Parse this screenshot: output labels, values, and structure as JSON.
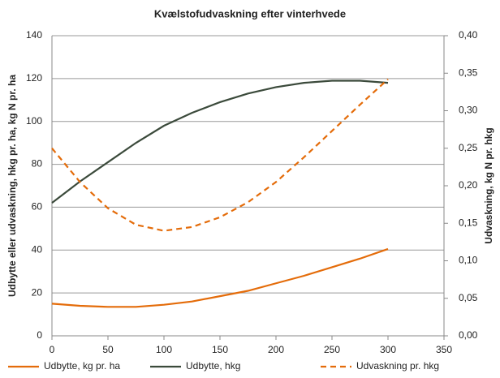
{
  "chart_data": {
    "type": "line",
    "title": "Kvælstofudvaskning efter vinterhvede",
    "ylabel": "Udbytte eller udvaskning, hkg pr. ha, kg N pr. ha",
    "y2label": "Udvaskning, kg N pr. hkg",
    "x": [
      0,
      25,
      50,
      75,
      100,
      125,
      150,
      175,
      200,
      225,
      250,
      275,
      300
    ],
    "series": [
      {
        "name": "Udbytte, kg pr. ha",
        "color": "#e46c0a",
        "style": "solid",
        "axis": "y",
        "values": [
          15,
          14,
          13.5,
          13.5,
          14.5,
          16,
          18.5,
          21,
          24.5,
          28,
          32,
          36,
          40.5
        ]
      },
      {
        "name": "Udbytte, hkg",
        "color": "#3b4a3b",
        "style": "solid",
        "axis": "y",
        "values": [
          62,
          72,
          81,
          90,
          98,
          104,
          109,
          113,
          116,
          118,
          119,
          119,
          118
        ]
      },
      {
        "name": "Udvaskning pr. hkg",
        "color": "#e46c0a",
        "style": "dashed",
        "axis": "y2",
        "values": [
          0.25,
          0.205,
          0.17,
          0.148,
          0.14,
          0.145,
          0.158,
          0.178,
          0.205,
          0.238,
          0.273,
          0.308,
          0.342
        ]
      }
    ],
    "xlim": [
      0,
      350
    ],
    "xticks": [
      0,
      50,
      100,
      150,
      200,
      250,
      300,
      350
    ],
    "ylim": [
      0,
      140
    ],
    "yticks": [
      0,
      20,
      40,
      60,
      80,
      100,
      120,
      140
    ],
    "y2lim": [
      0,
      0.4
    ],
    "y2ticks": [
      {
        "value": 0,
        "label": "0,00"
      },
      {
        "value": 0.05,
        "label": "0,05"
      },
      {
        "value": 0.1,
        "label": "0,10"
      },
      {
        "value": 0.15,
        "label": "0,15"
      },
      {
        "value": 0.2,
        "label": "0,20"
      },
      {
        "value": 0.25,
        "label": "0,25"
      },
      {
        "value": 0.3,
        "label": "0,30"
      },
      {
        "value": 0.35,
        "label": "0,35"
      },
      {
        "value": 0.4,
        "label": "0,40"
      }
    ],
    "grid": true,
    "legend": "bottom"
  }
}
